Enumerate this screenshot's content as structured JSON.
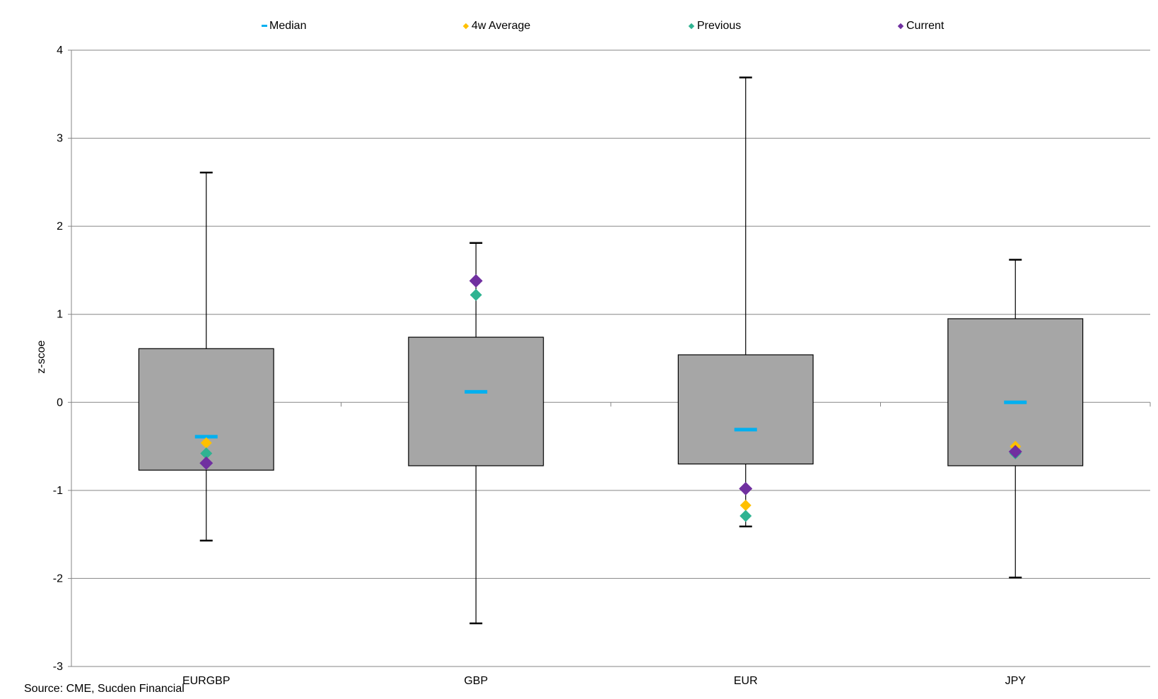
{
  "chart_data": {
    "type": "box",
    "title": "",
    "xlabel": "",
    "ylabel": "z-scoe",
    "ylim": [
      -3,
      4
    ],
    "yticks": [
      "4",
      "3",
      "2",
      "1",
      "0",
      "-1",
      "-2",
      "-3"
    ],
    "grid": true,
    "legend_position": "top",
    "categories": [
      "EURGBP",
      "GBP",
      "EUR",
      "JPY"
    ],
    "boxes": [
      {
        "category": "EURGBP",
        "min": -1.57,
        "q1": -0.77,
        "median": -0.39,
        "q3": 0.61,
        "max": 2.61
      },
      {
        "category": "GBP",
        "min": -2.51,
        "q1": -0.72,
        "median": 0.12,
        "q3": 0.74,
        "max": 1.81
      },
      {
        "category": "EUR",
        "min": -1.41,
        "q1": -0.7,
        "median": -0.31,
        "q3": 0.54,
        "max": 3.69
      },
      {
        "category": "JPY",
        "min": -1.99,
        "q1": -0.72,
        "median": 0.0,
        "q3": 0.95,
        "max": 1.62
      }
    ],
    "series": [
      {
        "name": "Median",
        "values": [
          -0.39,
          0.12,
          -0.31,
          0.0
        ]
      },
      {
        "name": "4w Average",
        "values": [
          -0.46,
          1.22,
          -1.17,
          -0.5
        ]
      },
      {
        "name": "Previous",
        "values": [
          -0.58,
          1.22,
          -1.29,
          -0.58
        ]
      },
      {
        "name": "Current",
        "values": [
          -0.69,
          1.38,
          -0.98,
          -0.56
        ]
      }
    ],
    "colors": {
      "box_fill": "#a6a6a6",
      "median": "#00b0f0",
      "avg4w": "#ffc000",
      "previous": "#2fb391",
      "current": "#7030a0"
    }
  },
  "legend": {
    "median": "Median",
    "avg4w": "4w Average",
    "previous": "Previous",
    "current": "Current"
  },
  "source": "Source: CME, Sucden Financial"
}
